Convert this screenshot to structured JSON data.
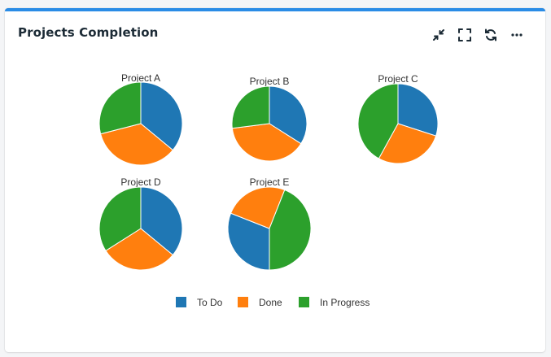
{
  "widget": {
    "title": "Projects Completion",
    "toolbar": [
      {
        "icon": "collapse-icon",
        "name": "collapse-button"
      },
      {
        "icon": "fullscreen-icon",
        "name": "fullscreen-button"
      },
      {
        "icon": "refresh-icon",
        "name": "refresh-button"
      },
      {
        "icon": "more-icon",
        "name": "more-button"
      }
    ]
  },
  "chart_data": {
    "type": "pie",
    "categories": [
      "To Do",
      "Done",
      "In Progress"
    ],
    "colors": [
      "#1f77b4",
      "#ff7f0e",
      "#2ca02c"
    ],
    "legend_position": "bottom",
    "pies": [
      {
        "title": "Project A",
        "values": [
          36,
          35,
          29
        ]
      },
      {
        "title": "Project B",
        "values": [
          34,
          39,
          27
        ]
      },
      {
        "title": "Project C",
        "values": [
          30,
          28,
          42
        ]
      },
      {
        "title": "Project D",
        "values": [
          36,
          30,
          34
        ]
      },
      {
        "title": "Project E",
        "values": [
          31,
          25,
          44
        ]
      }
    ]
  }
}
